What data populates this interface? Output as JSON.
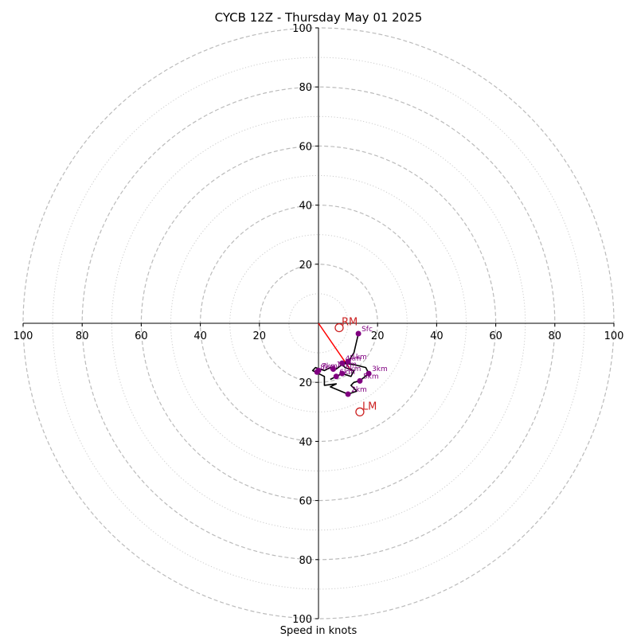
{
  "chart_data": {
    "type": "hodograph",
    "title": "CYCB 12Z - Thursday May 01 2025",
    "xlabel": "Speed in knots",
    "units": "knots",
    "range": [
      -100,
      100
    ],
    "dashed_rings": [
      20,
      40,
      60,
      80,
      100
    ],
    "dotted_rings": [
      10,
      30,
      50,
      70,
      90
    ],
    "x_ticks": [
      {
        "value": -100,
        "label": "100"
      },
      {
        "value": -80,
        "label": "80"
      },
      {
        "value": -60,
        "label": "60"
      },
      {
        "value": -40,
        "label": "40"
      },
      {
        "value": -20,
        "label": "20"
      },
      {
        "value": 20,
        "label": "20"
      },
      {
        "value": 40,
        "label": "40"
      },
      {
        "value": 60,
        "label": "60"
      },
      {
        "value": 80,
        "label": "80"
      },
      {
        "value": 100,
        "label": "100"
      }
    ],
    "y_ticks": [
      {
        "value": 100,
        "label": "100"
      },
      {
        "value": 80,
        "label": "80"
      },
      {
        "value": 60,
        "label": "60"
      },
      {
        "value": 40,
        "label": "40"
      },
      {
        "value": 20,
        "label": "20"
      },
      {
        "value": -20,
        "label": "20"
      },
      {
        "value": -40,
        "label": "40"
      },
      {
        "value": -60,
        "label": "60"
      },
      {
        "value": -80,
        "label": "80"
      },
      {
        "value": -100,
        "label": "100"
      }
    ],
    "hodograph_trace": [
      [
        13.5,
        -3.5
      ],
      [
        12,
        -10
      ],
      [
        10,
        -13
      ],
      [
        8,
        -13.5
      ],
      [
        12,
        -14
      ],
      [
        16,
        -15
      ],
      [
        17,
        -17
      ],
      [
        14,
        -19.5
      ],
      [
        12,
        -20
      ],
      [
        11,
        -21
      ],
      [
        13,
        -23
      ],
      [
        10,
        -24
      ],
      [
        4,
        -21.5
      ],
      [
        6,
        -20.5
      ],
      [
        2,
        -21
      ],
      [
        2,
        -18
      ],
      [
        -2,
        -16
      ],
      [
        -1,
        -15
      ],
      [
        2,
        -16
      ],
      [
        4,
        -15
      ],
      [
        6,
        -15.5
      ],
      [
        8,
        -14
      ],
      [
        9,
        -15
      ],
      [
        12,
        -16
      ],
      [
        11,
        -18
      ],
      [
        8,
        -17
      ],
      [
        6,
        -18
      ],
      [
        4,
        -19
      ]
    ],
    "height_labels": [
      {
        "label": "Sfc",
        "u": 13.5,
        "v": -3.5
      },
      {
        "label": "1km",
        "u": 10,
        "v": -13
      },
      {
        "label": "2km",
        "u": 10,
        "v": -24
      },
      {
        "label": "3km",
        "u": 17,
        "v": -17
      },
      {
        "label": "4km",
        "u": 8,
        "v": -13.5
      },
      {
        "label": "5km",
        "u": 14,
        "v": -19.5
      },
      {
        "label": "6km",
        "u": 6,
        "v": -18
      },
      {
        "label": "7km",
        "u": 0,
        "v": -16
      },
      {
        "label": "8km",
        "u": -0.5,
        "v": -16.5
      },
      {
        "label": "9km",
        "u": 8,
        "v": -17
      },
      {
        "label": "10km",
        "u": 5,
        "v": -15.5
      }
    ],
    "storm_motion": [
      {
        "label": "RM",
        "u": 7,
        "v": -1.5
      },
      {
        "label": "LM",
        "u": 14,
        "v": -30
      }
    ],
    "mean_wind_vector": {
      "u": 11,
      "v": -16
    },
    "colors": {
      "trace": "#000000",
      "height_points": "#800080",
      "storm_motion": "#cc2222",
      "mean_wind_vector": "#ff0000",
      "rings": "#bbbbbb"
    }
  }
}
